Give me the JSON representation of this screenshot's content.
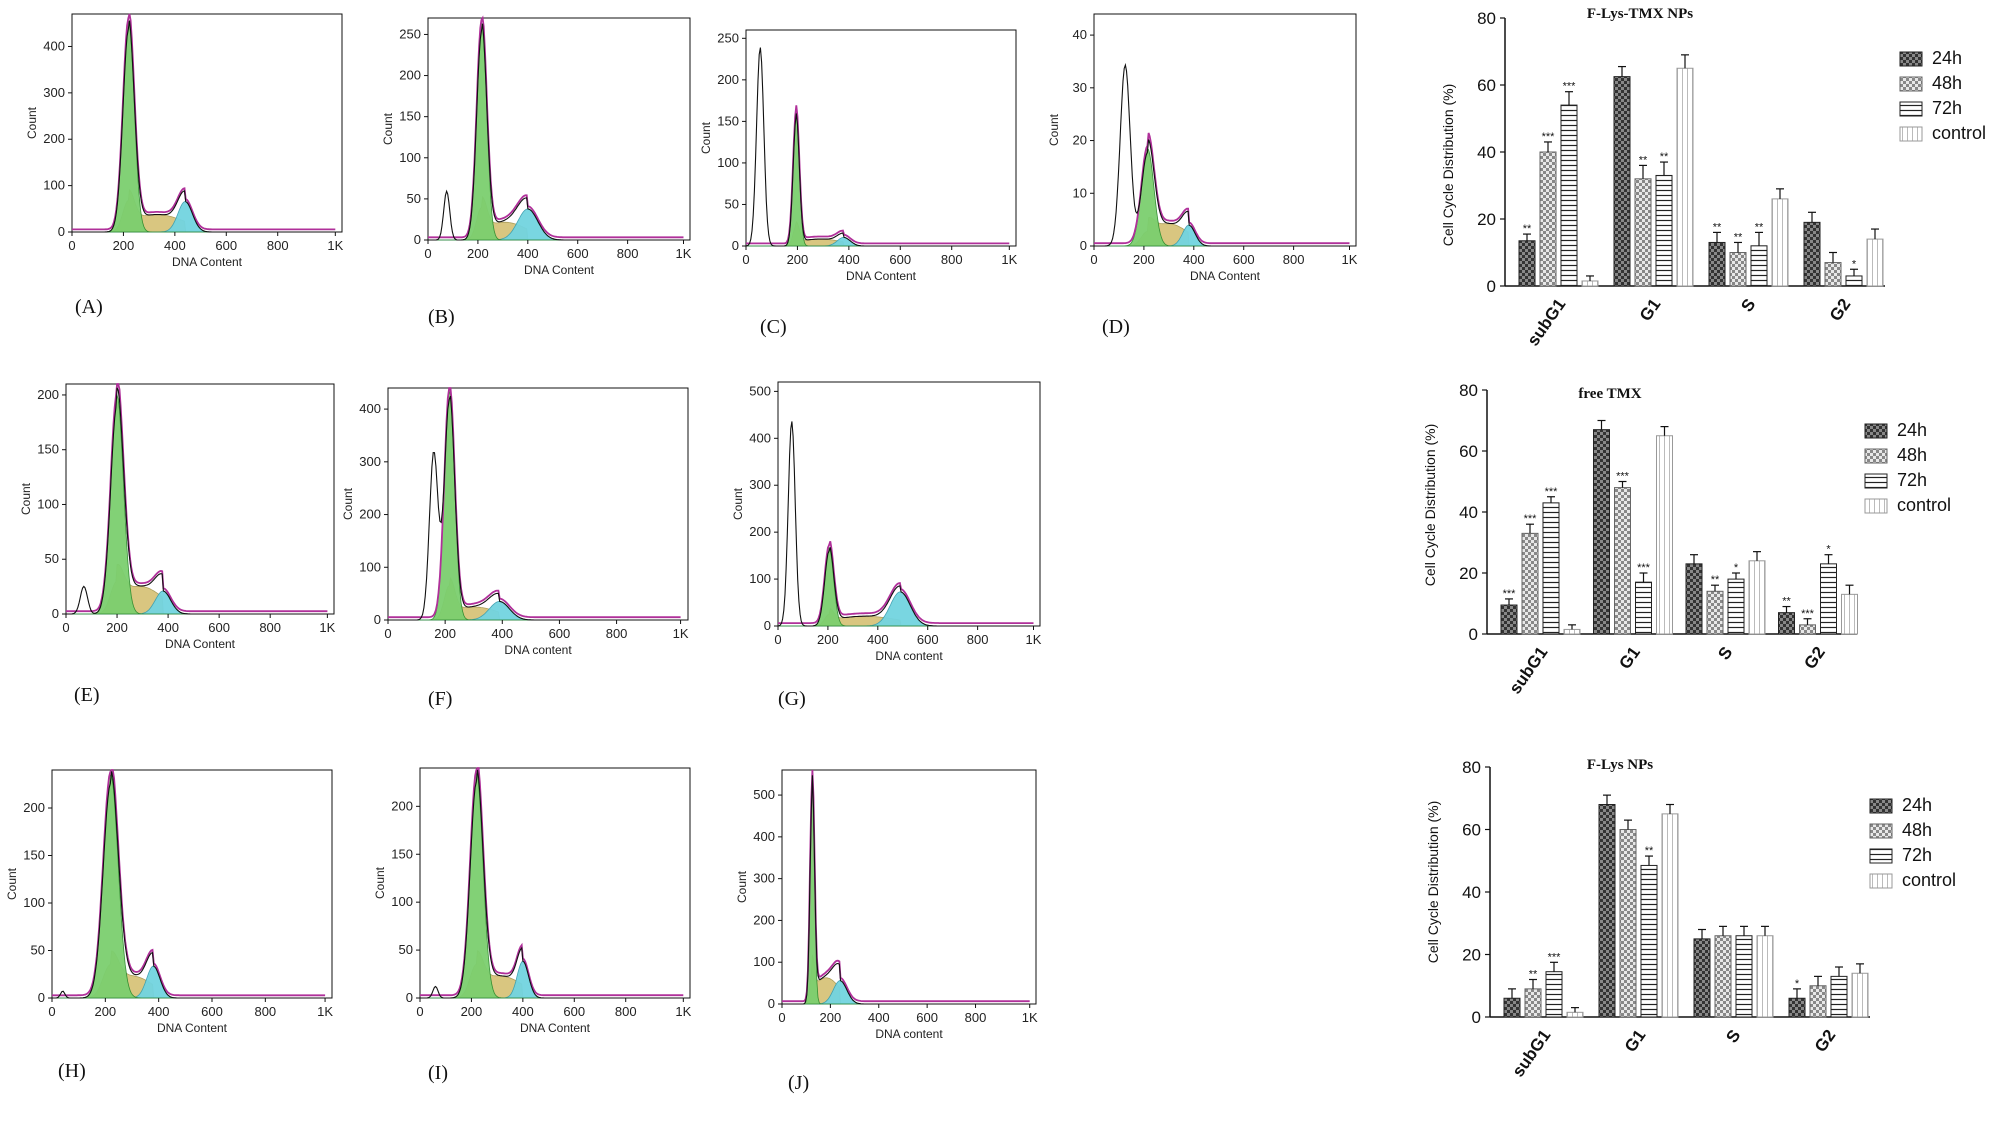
{
  "histograms": {
    "x_axis_ticks": [
      "0",
      "200",
      "400",
      "600",
      "800",
      "1K"
    ],
    "fill_colors": {
      "g1": "#7ccf6f",
      "g1_edge": "#2e8b2e",
      "s": "#d8c47a",
      "g2": "#72d4e0",
      "envelope": "#b0309a",
      "raw": "#111111"
    },
    "panels": [
      {
        "label": "(A)",
        "xlabel": "DNA Content",
        "ylabel": "Count",
        "yticks": [
          "0",
          "100",
          "200",
          "300",
          "400"
        ],
        "ymax": 470
      },
      {
        "label": "(B)",
        "xlabel": "DNA Content",
        "ylabel": "Count",
        "yticks": [
          "0",
          "50",
          "100",
          "150",
          "200",
          "250"
        ],
        "ymax": 270
      },
      {
        "label": "(C)",
        "xlabel": "DNA Content",
        "ylabel": "Count",
        "yticks": [
          "0",
          "50",
          "100",
          "150",
          "200",
          "250"
        ],
        "ymax": 260
      },
      {
        "label": "(D)",
        "xlabel": "DNA Content",
        "ylabel": "Count",
        "yticks": [
          "0",
          "10",
          "20",
          "30",
          "40"
        ],
        "ymax": 44
      },
      {
        "label": "(E)",
        "xlabel": "DNA Content",
        "ylabel": "Count",
        "yticks": [
          "0",
          "50",
          "100",
          "150",
          "200"
        ],
        "ymax": 210
      },
      {
        "label": "(F)",
        "xlabel": "DNA content",
        "ylabel": "Count",
        "yticks": [
          "0",
          "100",
          "200",
          "300",
          "400"
        ],
        "ymax": 440
      },
      {
        "label": "(G)",
        "xlabel": "DNA content",
        "ylabel": "Count",
        "yticks": [
          "0",
          "100",
          "200",
          "300",
          "400",
          "500"
        ],
        "ymax": 520
      },
      {
        "label": "(H)",
        "xlabel": "DNA Content",
        "ylabel": "Count",
        "yticks": [
          "0",
          "50",
          "100",
          "150",
          "200"
        ],
        "ymax": 240
      },
      {
        "label": "(I)",
        "xlabel": "DNA Content",
        "ylabel": "Count",
        "yticks": [
          "0",
          "50",
          "100",
          "150",
          "200"
        ],
        "ymax": 240
      },
      {
        "label": "(J)",
        "xlabel": "DNA content",
        "ylabel": "Count",
        "yticks": [
          "0",
          "100",
          "200",
          "300",
          "400",
          "500"
        ],
        "ymax": 560
      }
    ]
  },
  "chart_data": [
    {
      "type": "bar",
      "title": "F-Lys-TMX NPs",
      "ylabel": "Cell Cycle Distribution (%)",
      "ylim": [
        0,
        80
      ],
      "yticks": [
        "0",
        "20",
        "40",
        "60",
        "80"
      ],
      "categories": [
        "subG1",
        "G1",
        "S",
        "G2"
      ],
      "series": [
        {
          "name": "24h",
          "values": [
            13.5,
            62.5,
            13,
            19
          ],
          "errors": [
            2,
            3,
            3,
            3
          ],
          "sig": [
            "**",
            "",
            "**",
            ""
          ]
        },
        {
          "name": "48h",
          "values": [
            40,
            32,
            10,
            7
          ],
          "errors": [
            3,
            4,
            3,
            3
          ],
          "sig": [
            "***",
            "**",
            "**",
            ""
          ]
        },
        {
          "name": "72h",
          "values": [
            54,
            33,
            12,
            3
          ],
          "errors": [
            4,
            4,
            4,
            2
          ],
          "sig": [
            "***",
            "**",
            "**",
            "*"
          ]
        },
        {
          "name": "control",
          "values": [
            1.5,
            65,
            26,
            14
          ],
          "errors": [
            1.5,
            4,
            3,
            3
          ],
          "sig": [
            "",
            "",
            "",
            ""
          ]
        }
      ],
      "legend": "right"
    },
    {
      "type": "bar",
      "title": "free TMX",
      "ylabel": "Cell Cycle Distribution (%)",
      "ylim": [
        0,
        80
      ],
      "yticks": [
        "0",
        "20",
        "40",
        "60",
        "80"
      ],
      "categories": [
        "subG1",
        "G1",
        "S",
        "G2"
      ],
      "series": [
        {
          "name": "24h",
          "values": [
            9.5,
            67,
            23,
            7
          ],
          "errors": [
            2,
            3,
            3,
            2
          ],
          "sig": [
            "***",
            "",
            "",
            "**"
          ]
        },
        {
          "name": "48h",
          "values": [
            33,
            48,
            14,
            3
          ],
          "errors": [
            3,
            2,
            2,
            2
          ],
          "sig": [
            "***",
            "***",
            "**",
            "***"
          ]
        },
        {
          "name": "72h",
          "values": [
            43,
            17,
            18,
            23
          ],
          "errors": [
            2,
            3,
            2,
            3
          ],
          "sig": [
            "***",
            "***",
            "*",
            "*"
          ]
        },
        {
          "name": "control",
          "values": [
            1.5,
            65,
            24,
            13
          ],
          "errors": [
            1.5,
            3,
            3,
            3
          ],
          "sig": [
            "",
            "",
            "",
            ""
          ]
        }
      ],
      "legend": "right"
    },
    {
      "type": "bar",
      "title": "F-Lys NPs",
      "ylabel": "Cell Cycle Distribution (%)",
      "ylim": [
        0,
        80
      ],
      "yticks": [
        "0",
        "20",
        "40",
        "60",
        "80"
      ],
      "categories": [
        "subG1",
        "G1",
        "S",
        "G2"
      ],
      "series": [
        {
          "name": "24h",
          "values": [
            6,
            68,
            25,
            6
          ],
          "errors": [
            3,
            3,
            3,
            3
          ],
          "sig": [
            "",
            "",
            "",
            "*"
          ]
        },
        {
          "name": "48h",
          "values": [
            9,
            60,
            26,
            10
          ],
          "errors": [
            3,
            3,
            3,
            3
          ],
          "sig": [
            "**",
            "",
            "",
            ""
          ]
        },
        {
          "name": "72h",
          "values": [
            14.5,
            48.5,
            26,
            13
          ],
          "errors": [
            3,
            3,
            3,
            3
          ],
          "sig": [
            "***",
            "**",
            "",
            ""
          ]
        },
        {
          "name": "control",
          "values": [
            1.5,
            65,
            26,
            14
          ],
          "errors": [
            1.5,
            3,
            3,
            3
          ],
          "sig": [
            "",
            "",
            "",
            ""
          ]
        }
      ],
      "legend": "right"
    }
  ]
}
